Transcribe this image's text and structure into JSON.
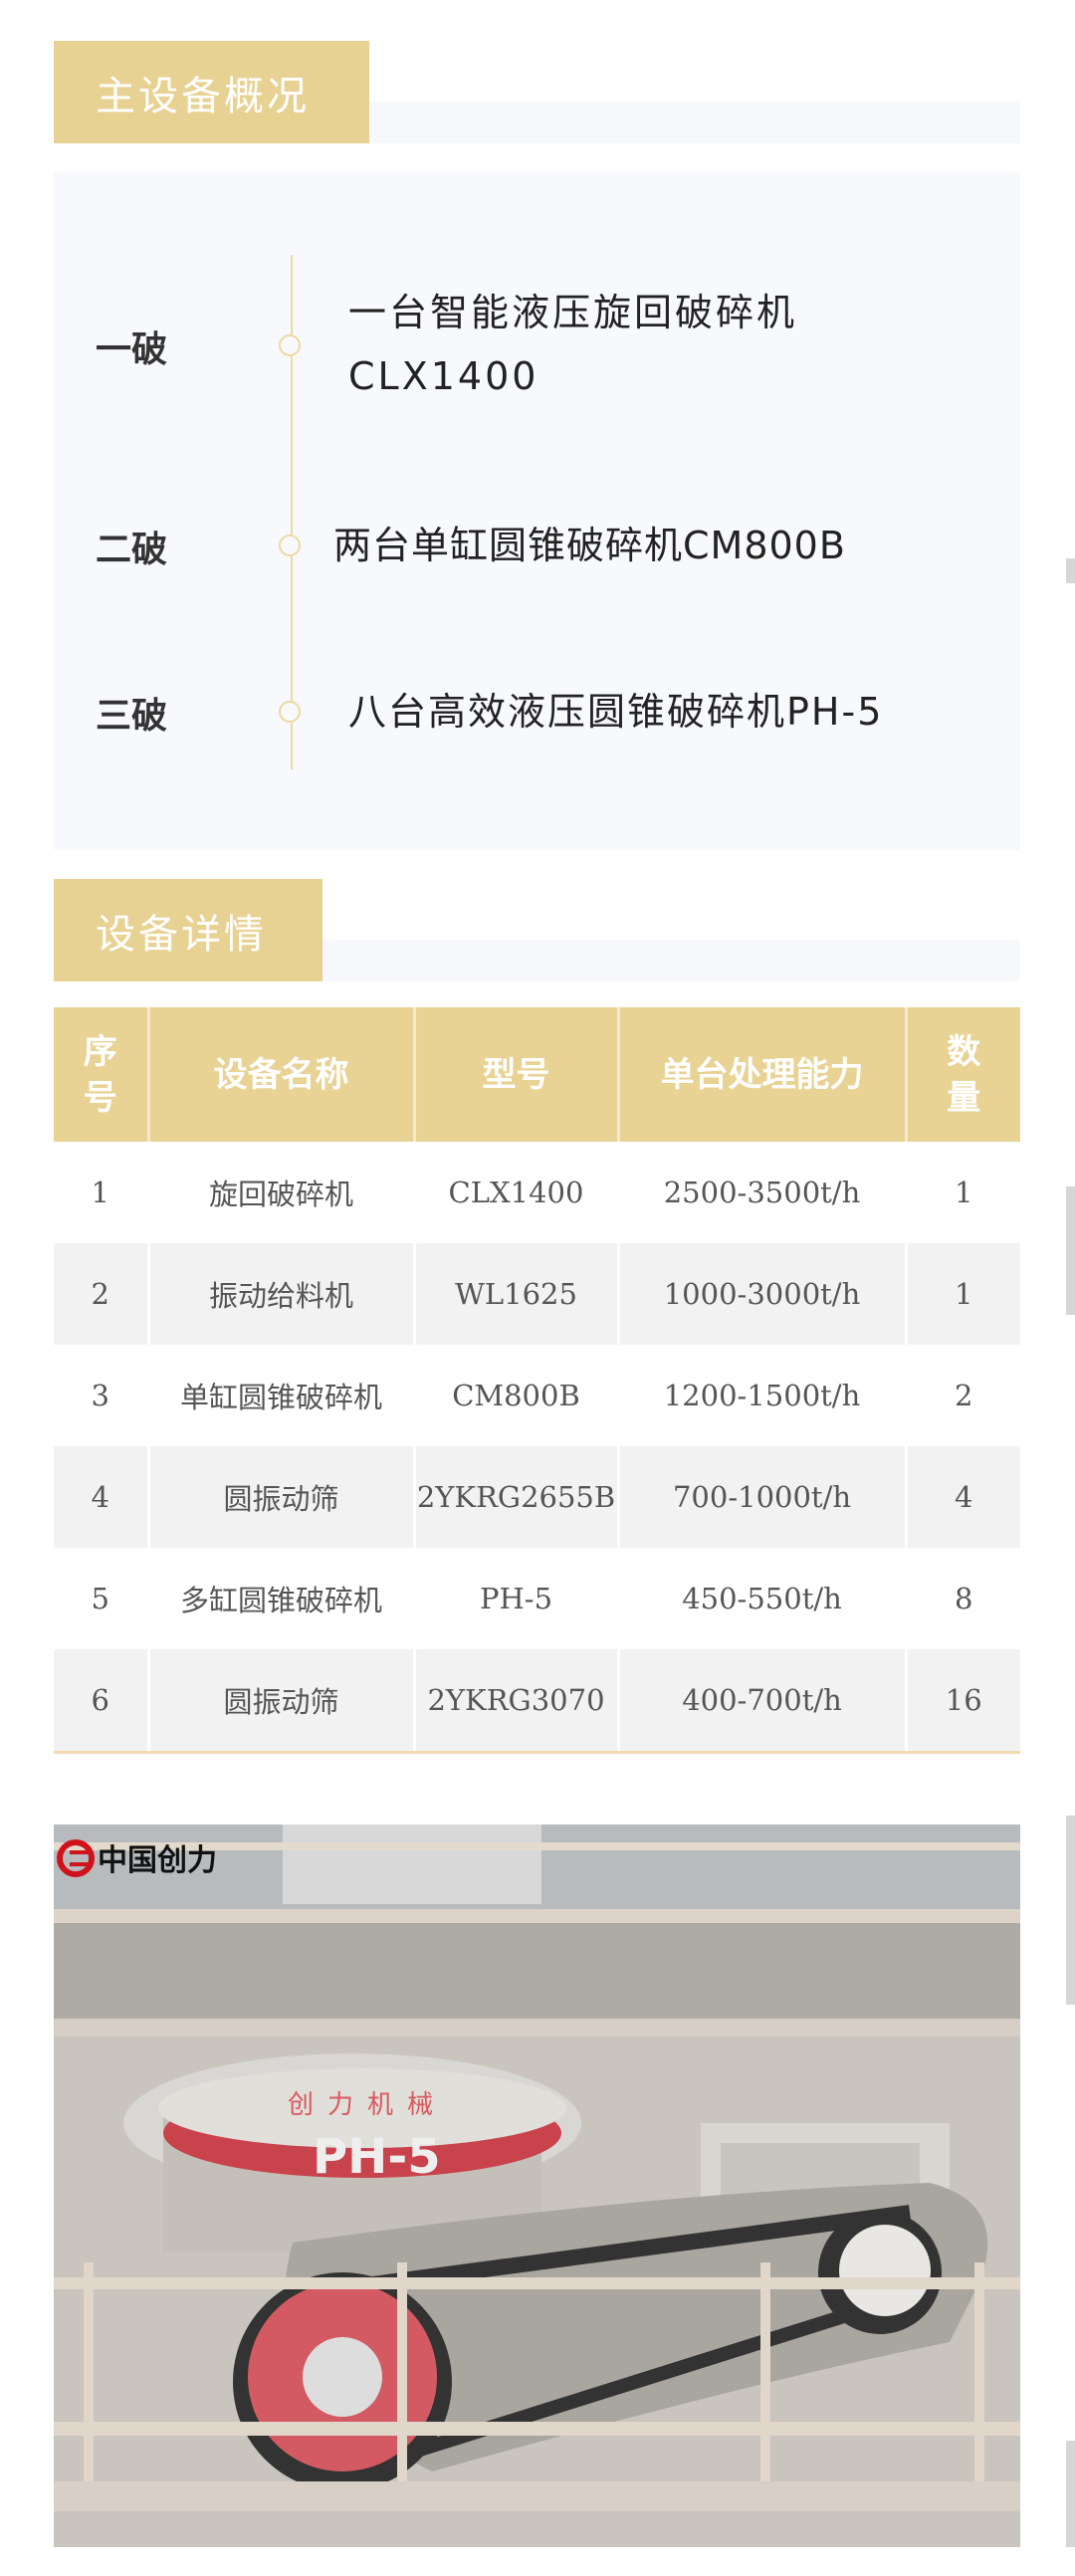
{
  "overview": {
    "title": "主设备概况",
    "stages": [
      {
        "label": "一破",
        "lines": [
          "一台智能液压旋回破碎机",
          "CLX1400"
        ]
      },
      {
        "label": "二破",
        "lines": [
          "两台单缸圆锥破碎机CM800B"
        ]
      },
      {
        "label": "三破",
        "lines": [
          "八台高效液压圆锥破碎机PH-5"
        ]
      }
    ],
    "accent_color": "#e8d293"
  },
  "details": {
    "title": "设备详情",
    "columns": [
      "序号",
      "设备名称",
      "型号",
      "单台处理能力",
      "数量"
    ],
    "rows": [
      [
        "1",
        "旋回破碎机",
        "CLX1400",
        "2500-3500t/h",
        "1"
      ],
      [
        "2",
        "振动给料机",
        "WL1625",
        "1000-3000t/h",
        "1"
      ],
      [
        "3",
        "单缸圆锥破碎机",
        "CM800B",
        "1200-1500t/h",
        "2"
      ],
      [
        "4",
        "圆振动筛",
        "2YKRG2655B",
        "700-1000t/h",
        "4"
      ],
      [
        "5",
        "多缸圆锥破碎机",
        "PH-5",
        "450-550t/h",
        "8"
      ],
      [
        "6",
        "圆振动筛",
        "2YKRG3070",
        "400-700t/h",
        "16"
      ]
    ]
  },
  "photo": {
    "logo_text": "中国创力",
    "machine_text": "创力机械",
    "model_text": "PH-5"
  }
}
